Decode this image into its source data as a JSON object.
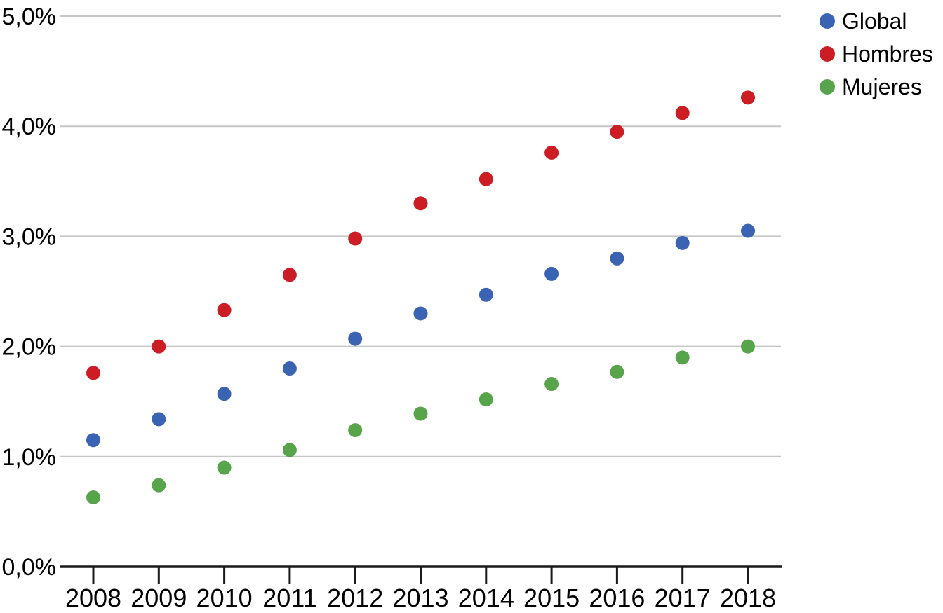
{
  "chart_data": {
    "type": "scatter",
    "title": "",
    "xlabel": "",
    "ylabel": "",
    "x": [
      2008,
      2009,
      2010,
      2011,
      2012,
      2013,
      2014,
      2015,
      2016,
      2017,
      2018
    ],
    "ylim": [
      0,
      5
    ],
    "y_tick_values": [
      0,
      1,
      2,
      3,
      4,
      5
    ],
    "y_tick_labels": [
      "0,0%",
      "1,0%",
      "2,0%",
      "3,0%",
      "4,0%",
      "5,0%"
    ],
    "grid": true,
    "legend_position": "top-right",
    "series": [
      {
        "name": "Global",
        "color": "#3b63b4",
        "values": [
          1.15,
          1.34,
          1.57,
          1.8,
          2.07,
          2.3,
          2.47,
          2.66,
          2.8,
          2.94,
          3.05
        ]
      },
      {
        "name": "Hombres",
        "color": "#cb1d23",
        "values": [
          1.76,
          2.0,
          2.33,
          2.65,
          2.98,
          3.3,
          3.52,
          3.76,
          3.95,
          4.12,
          4.26
        ]
      },
      {
        "name": "Mujeres",
        "color": "#57a44b",
        "values": [
          0.63,
          0.74,
          0.9,
          1.06,
          1.24,
          1.39,
          1.52,
          1.66,
          1.77,
          1.9,
          2.0
        ]
      }
    ]
  },
  "colors": {
    "grid": "#c6c6c6",
    "axis": "#1a1a1a",
    "text": "#000000",
    "background": "#ffffff"
  }
}
